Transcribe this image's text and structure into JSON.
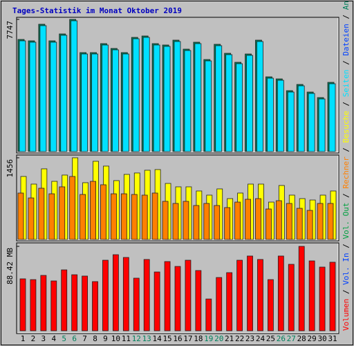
{
  "chart_data": {
    "type": "bar",
    "title": "Tages-Statistik im Monat Oktober 2019",
    "categories": [
      "1",
      "2",
      "3",
      "4",
      "5",
      "6",
      "7",
      "8",
      "9",
      "10",
      "11",
      "12",
      "13",
      "14",
      "15",
      "16",
      "17",
      "18",
      "19",
      "20",
      "21",
      "22",
      "23",
      "24",
      "25",
      "26",
      "27",
      "28",
      "29",
      "30",
      "31"
    ],
    "weekend": [
      5,
      6,
      12,
      13,
      19,
      20,
      26,
      27
    ],
    "weekend_color": "#00805c",
    "legend_separator": " / ",
    "panels": [
      {
        "ylim": [
          0,
          7747
        ],
        "yticks": [
          7747
        ],
        "series": [
          {
            "name": "Anfragen",
            "color": "#00805c",
            "values": [
              6571,
              6490,
              7463,
              6490,
              6895,
              7747,
              5800,
              5800,
              6327,
              6043,
              5800,
              6692,
              6774,
              6327,
              6246,
              6530,
              6003,
              6409,
              5394,
              6287,
              5760,
              5232,
              5719,
              6530,
              4380,
              4259,
              3569,
              3934,
              3488,
              3164,
              4056
            ]
          },
          {
            "name": "Dateien",
            "color": "#0040ff"
          },
          {
            "name": "Seiten",
            "color": "#00e0ff",
            "values": [
              6490,
              6410,
              7380,
              6410,
              6815,
              7666,
              5720,
              5720,
              6246,
              5963,
              5720,
              6611,
              6693,
              6246,
              6165,
              6450,
              5923,
              6328,
              5314,
              6206,
              5680,
              5151,
              5639,
              6450,
              4300,
              4178,
              3488,
              3853,
              3407,
              3083,
              3975
            ]
          }
        ]
      },
      {
        "ylim": [
          0,
          1456
        ],
        "yticks": [
          1456
        ],
        "series": [
          {
            "name": "Besuche",
            "color": "#ffff00",
            "values": [
              1123,
              987,
              1259,
              1036,
              1148,
              1456,
              1012,
              1394,
              1308,
              1049,
              1160,
              1185,
              1234,
              1246,
              999,
              938,
              938,
              864,
              790,
              901,
              728,
              827,
              987,
              987,
              666,
              962,
              790,
              728,
              703,
              790,
              864
            ]
          },
          {
            "name": "Rechner",
            "color": "#ff8000",
            "values": [
              827,
              740,
              913,
              814,
              938,
              1123,
              802,
              1036,
              975,
              814,
              814,
              802,
              790,
              827,
              679,
              642,
              679,
              605,
              642,
              605,
              568,
              666,
              716,
              728,
              543,
              691,
              642,
              555,
              518,
              642,
              642
            ]
          }
        ]
      },
      {
        "ylim": [
          0,
          88.42
        ],
        "yticks": [
          {
            "value": 88.42,
            "label": "88.42 MB"
          }
        ],
        "series": [
          {
            "name": "Vol. Out",
            "color": "#00a040"
          },
          {
            "name": "Vol. In",
            "color": "#0040ff"
          },
          {
            "name": "Volumen",
            "color": "#ff0000",
            "values": [
              54.4,
              53.6,
              58.0,
              52.2,
              63.8,
              58.7,
              57.3,
              51.5,
              73.9,
              79.7,
              76.8,
              55.1,
              74.7,
              61.6,
              72.5,
              67.4,
              73.9,
              63.1,
              33.3,
              55.8,
              60.9,
              73.9,
              78.3,
              74.7,
              53.6,
              78.3,
              69.6,
              88.42,
              73.2,
              66.7,
              71.8
            ]
          }
        ]
      }
    ]
  }
}
